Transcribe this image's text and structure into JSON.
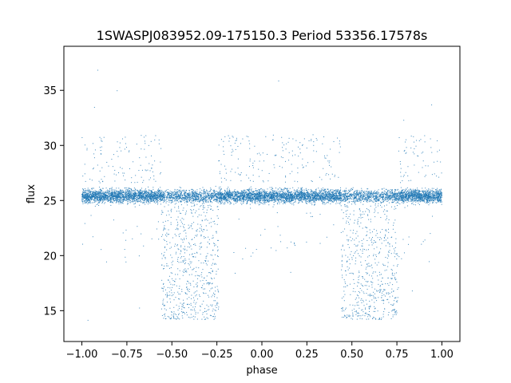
{
  "chart_data": {
    "type": "scatter",
    "title": "1SWASPJ083952.09-175150.3 Period 53356.17578s",
    "xlabel": "phase",
    "ylabel": "flux",
    "xlim": [
      -1.1,
      1.1
    ],
    "ylim": [
      12.2,
      39.0
    ],
    "x_ticks": [
      -1.0,
      -0.75,
      -0.5,
      -0.25,
      0.0,
      0.25,
      0.5,
      0.75,
      1.0
    ],
    "x_tick_labels": [
      "−1.00",
      "−0.75",
      "−0.50",
      "−0.25",
      "0.00",
      "0.25",
      "0.50",
      "0.75",
      "1.00"
    ],
    "y_ticks": [
      15,
      20,
      25,
      30,
      35
    ],
    "y_tick_labels": [
      "15",
      "20",
      "25",
      "30",
      "35"
    ],
    "grid": false,
    "legend": "none",
    "series": [
      {
        "marker_color": "#1f77b4",
        "baseline_flux": 25.4,
        "baseline_scatter": 0.5,
        "eclipse_phase_ranges": [
          [
            -0.56,
            -0.24
          ],
          [
            0.44,
            0.76
          ]
        ],
        "eclipse_min_flux": 14.2,
        "phase_range": [
          -1.0,
          1.0
        ],
        "approx_point_count": 9000
      }
    ]
  }
}
